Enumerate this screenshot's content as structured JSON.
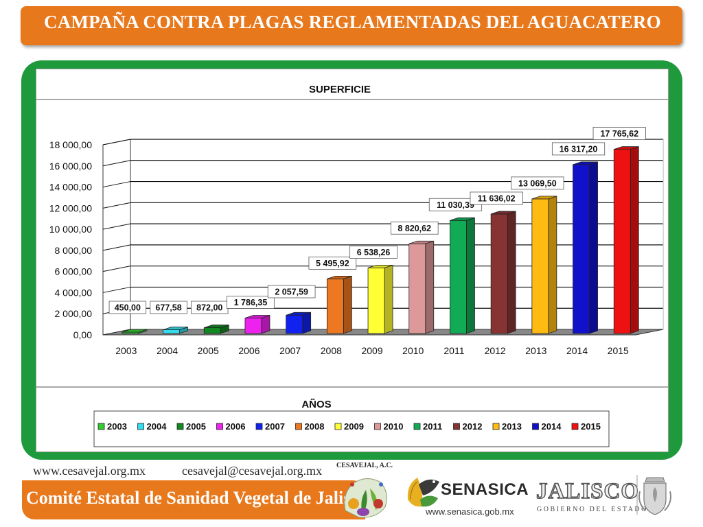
{
  "header": {
    "title": "CAMPAÑA CONTRA PLAGAS REGLAMENTADAS DEL AGUACATERO"
  },
  "chart_data": {
    "type": "bar",
    "title": "SUPERFICIE",
    "xlabel": "AÑOS",
    "ylabel": "",
    "ylim": [
      0,
      18000
    ],
    "y_ticks": [
      "0,00",
      "2 000,00",
      "4 000,00",
      "6 000,00",
      "8 000,00",
      "10 000,00",
      "12 000,00",
      "14 000,00",
      "16 000,00",
      "18 000,00"
    ],
    "categories": [
      "2003",
      "2004",
      "2005",
      "2006",
      "2007",
      "2008",
      "2009",
      "2010",
      "2011",
      "2012",
      "2013",
      "2014",
      "2015"
    ],
    "values": [
      450.0,
      677.58,
      872.0,
      1786.35,
      2057.59,
      5495.92,
      6538.26,
      8820.62,
      11030.39,
      11636.02,
      13069.5,
      16317.2,
      17765.62
    ],
    "data_labels": [
      "450,00",
      "677,58",
      "872,00",
      "1 786,35",
      "2 057,59",
      "5 495,92",
      "6 538,26",
      "8 820,62",
      "11 030,39",
      "11 636,02",
      "13 069,50",
      "16 317,20",
      "17 765,62"
    ],
    "colors": [
      "#33cc33",
      "#33ddee",
      "#118822",
      "#ee22ee",
      "#1122ee",
      "#ee7722",
      "#ffff33",
      "#dd9999",
      "#11aa55",
      "#883333",
      "#ffbb11",
      "#1111cc",
      "#ee1111"
    ],
    "grid": true,
    "legend_position": "bottom"
  },
  "footer": {
    "website": "www.cesavejal.org.mx",
    "email": "cesavejal@cesavejal.org.mx",
    "committee": "Comité Estatal de Sanidad Vegetal de Jalisco",
    "cesavejal_logo_label": "CESAVEJAL, A.C.",
    "senasica_name": "SENASICA",
    "senasica_url": "www.senasica.gob.mx",
    "jalisco_name": "JALISCO",
    "jalisco_sub": "GOBIERNO DEL ESTADO"
  }
}
